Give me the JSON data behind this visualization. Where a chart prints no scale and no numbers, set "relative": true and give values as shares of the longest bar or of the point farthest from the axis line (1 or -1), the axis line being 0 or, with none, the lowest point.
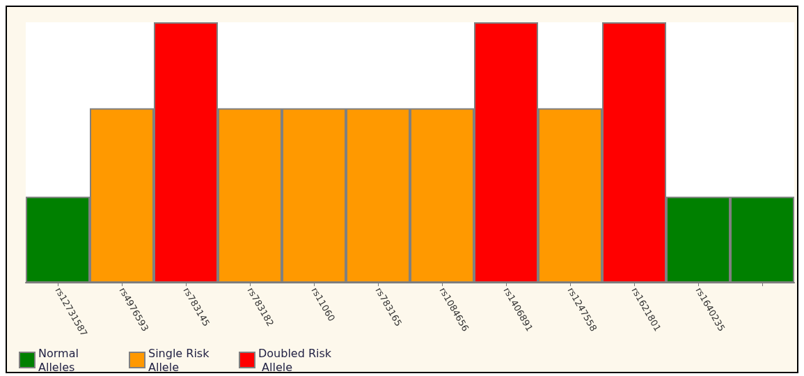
{
  "chart_data": {
    "type": "bar",
    "relative": true,
    "stacked": true,
    "legend": "bottom left",
    "categories": [
      "rs12731587",
      "rs4976593",
      "rs783145",
      "rs783182",
      "rs11060",
      "rs783165",
      "rs1084656",
      "rs1406891",
      "rs1247558",
      "rs1621801",
      "rs1640235",
      null
    ],
    "series": [
      {
        "name": "Normal Alleles",
        "color": "#008000",
        "values": [
          0.33,
          null,
          null,
          null,
          null,
          null,
          null,
          null,
          null,
          null,
          0.33,
          0.33
        ]
      },
      {
        "name": "Single Risk Allele",
        "color": "#ff9900",
        "values": [
          null,
          0.67,
          null,
          0.67,
          0.67,
          0.67,
          0.67,
          null,
          0.67,
          null,
          null,
          null
        ]
      },
      {
        "name": "Doubled Risk Allele",
        "color": "#ff0000",
        "values": [
          null,
          null,
          1,
          null,
          null,
          null,
          null,
          1,
          null,
          1,
          null,
          null
        ]
      }
    ]
  }
}
